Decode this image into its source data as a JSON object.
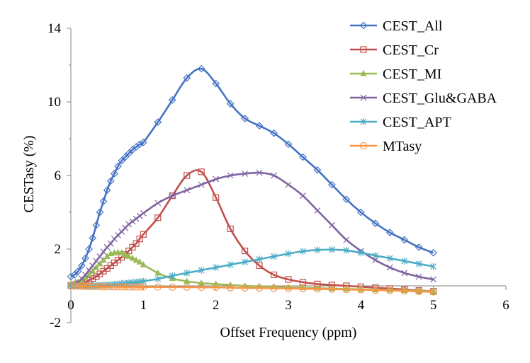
{
  "chart_data": {
    "type": "line",
    "title": "",
    "xlabel": "Offset Frequency (ppm)",
    "ylabel": "CESTasy (%)",
    "xlim": [
      0,
      6
    ],
    "ylim": [
      -2,
      14
    ],
    "xticks": [
      0,
      1,
      2,
      3,
      4,
      5,
      6
    ],
    "yticks": [
      -2,
      2,
      6,
      10,
      14
    ],
    "xtick_labels": [
      "0",
      "1",
      "2",
      "3",
      "4",
      "5",
      "6"
    ],
    "ytick_labels": [
      "-2",
      "2",
      "6",
      "10",
      "14"
    ],
    "grid": false,
    "legend_position": "top-right",
    "series": [
      {
        "name": "CEST_All",
        "color": "#4472C4",
        "marker": "diamond",
        "x": [
          0,
          0.05,
          0.1,
          0.15,
          0.2,
          0.25,
          0.3,
          0.35,
          0.4,
          0.45,
          0.5,
          0.55,
          0.6,
          0.65,
          0.7,
          0.75,
          0.8,
          0.85,
          0.9,
          0.95,
          1.0,
          1.2,
          1.4,
          1.6,
          1.8,
          2.0,
          2.2,
          2.4,
          2.6,
          2.8,
          3.0,
          3.2,
          3.4,
          3.6,
          3.8,
          4.0,
          4.2,
          4.4,
          4.6,
          4.8,
          5.0
        ],
        "y": [
          0.5,
          0.6,
          0.8,
          1.1,
          1.5,
          2.0,
          2.6,
          3.3,
          4.0,
          4.6,
          5.2,
          5.7,
          6.1,
          6.5,
          6.8,
          7.0,
          7.2,
          7.4,
          7.55,
          7.7,
          7.8,
          8.9,
          10.1,
          11.3,
          11.8,
          11.0,
          9.9,
          9.1,
          8.7,
          8.3,
          7.7,
          7.0,
          6.3,
          5.5,
          4.7,
          4.0,
          3.4,
          2.9,
          2.5,
          2.1,
          1.8
        ]
      },
      {
        "name": "CEST_Cr",
        "color": "#C0504D",
        "marker": "square",
        "x": [
          0,
          0.05,
          0.1,
          0.15,
          0.2,
          0.25,
          0.3,
          0.35,
          0.4,
          0.45,
          0.5,
          0.55,
          0.6,
          0.65,
          0.7,
          0.75,
          0.8,
          0.85,
          0.9,
          0.95,
          1.0,
          1.2,
          1.4,
          1.6,
          1.8,
          2.0,
          2.2,
          2.4,
          2.6,
          2.8,
          3.0,
          3.2,
          3.4,
          3.6,
          3.8,
          4.0,
          4.2,
          4.4,
          4.6,
          4.8,
          5.0
        ],
        "y": [
          0.02,
          0.05,
          0.1,
          0.15,
          0.2,
          0.3,
          0.4,
          0.5,
          0.65,
          0.8,
          0.95,
          1.1,
          1.25,
          1.4,
          1.55,
          1.7,
          1.9,
          2.1,
          2.3,
          2.55,
          2.8,
          3.7,
          4.9,
          6.0,
          6.2,
          4.8,
          3.1,
          1.9,
          1.1,
          0.6,
          0.35,
          0.2,
          0.1,
          0.05,
          0.0,
          -0.05,
          -0.1,
          -0.15,
          -0.2,
          -0.25,
          -0.3
        ]
      },
      {
        "name": "CEST_MI",
        "color": "#9BBB59",
        "marker": "triangle",
        "x": [
          0,
          0.05,
          0.1,
          0.15,
          0.2,
          0.25,
          0.3,
          0.35,
          0.4,
          0.45,
          0.5,
          0.55,
          0.6,
          0.65,
          0.7,
          0.75,
          0.8,
          0.85,
          0.9,
          0.95,
          1.0,
          1.2,
          1.4,
          1.6,
          1.8,
          2.0,
          2.2,
          2.4,
          2.6,
          2.8,
          3.0,
          3.2,
          3.4,
          3.6,
          3.8,
          4.0,
          4.2,
          4.4,
          4.6,
          4.8,
          5.0
        ],
        "y": [
          0.1,
          0.15,
          0.2,
          0.3,
          0.45,
          0.6,
          0.8,
          1.0,
          1.2,
          1.4,
          1.6,
          1.75,
          1.8,
          1.82,
          1.8,
          1.7,
          1.6,
          1.5,
          1.4,
          1.3,
          1.15,
          0.7,
          0.4,
          0.25,
          0.15,
          0.1,
          0.05,
          0.0,
          -0.03,
          -0.05,
          -0.08,
          -0.1,
          -0.12,
          -0.15,
          -0.17,
          -0.19,
          -0.21,
          -0.23,
          -0.25,
          -0.27,
          -0.3
        ]
      },
      {
        "name": "CEST_Glu&GABA",
        "color": "#8064A2",
        "marker": "x",
        "x": [
          0,
          0.05,
          0.1,
          0.15,
          0.2,
          0.25,
          0.3,
          0.35,
          0.4,
          0.45,
          0.5,
          0.55,
          0.6,
          0.65,
          0.7,
          0.75,
          0.8,
          0.85,
          0.9,
          0.95,
          1.0,
          1.2,
          1.4,
          1.6,
          1.8,
          2.0,
          2.2,
          2.4,
          2.6,
          2.8,
          3.0,
          3.2,
          3.4,
          3.6,
          3.8,
          4.0,
          4.2,
          4.4,
          4.6,
          4.8,
          5.0
        ],
        "y": [
          0.02,
          0.1,
          0.2,
          0.4,
          0.6,
          0.85,
          1.1,
          1.35,
          1.6,
          1.85,
          2.1,
          2.3,
          2.55,
          2.75,
          2.95,
          3.15,
          3.35,
          3.5,
          3.65,
          3.8,
          3.95,
          4.5,
          4.9,
          5.2,
          5.5,
          5.8,
          6.0,
          6.1,
          6.15,
          6.0,
          5.5,
          4.9,
          4.1,
          3.3,
          2.5,
          1.9,
          1.4,
          1.0,
          0.7,
          0.5,
          0.35
        ]
      },
      {
        "name": "CEST_APT",
        "color": "#4BACC6",
        "marker": "star",
        "x": [
          0,
          0.05,
          0.1,
          0.15,
          0.2,
          0.25,
          0.3,
          0.35,
          0.4,
          0.45,
          0.5,
          0.55,
          0.6,
          0.65,
          0.7,
          0.75,
          0.8,
          0.85,
          0.9,
          0.95,
          1.0,
          1.2,
          1.4,
          1.6,
          1.8,
          2.0,
          2.2,
          2.4,
          2.6,
          2.8,
          3.0,
          3.2,
          3.4,
          3.6,
          3.8,
          4.0,
          4.2,
          4.4,
          4.6,
          4.8,
          5.0
        ],
        "y": [
          0.0,
          0.0,
          0.0,
          0.0,
          0.0,
          0.01,
          0.01,
          0.02,
          0.03,
          0.04,
          0.05,
          0.06,
          0.08,
          0.1,
          0.12,
          0.14,
          0.16,
          0.18,
          0.2,
          0.22,
          0.25,
          0.38,
          0.55,
          0.7,
          0.85,
          1.0,
          1.15,
          1.3,
          1.45,
          1.6,
          1.75,
          1.88,
          1.95,
          1.97,
          1.93,
          1.8,
          1.65,
          1.5,
          1.35,
          1.2,
          1.05
        ]
      },
      {
        "name": "MTasy",
        "color": "#F79646",
        "marker": "circle",
        "x": [
          0,
          0.05,
          0.1,
          0.15,
          0.2,
          0.25,
          0.3,
          0.35,
          0.4,
          0.45,
          0.5,
          0.55,
          0.6,
          0.65,
          0.7,
          0.75,
          0.8,
          0.85,
          0.9,
          0.95,
          1.0,
          1.2,
          1.4,
          1.6,
          1.8,
          2.0,
          2.2,
          2.4,
          2.6,
          2.8,
          3.0,
          3.2,
          3.4,
          3.6,
          3.8,
          4.0,
          4.2,
          4.4,
          4.6,
          4.8,
          5.0
        ],
        "y": [
          0.0,
          -0.01,
          -0.02,
          -0.02,
          -0.03,
          -0.03,
          -0.04,
          -0.04,
          -0.04,
          -0.05,
          -0.05,
          -0.05,
          -0.05,
          -0.06,
          -0.06,
          -0.06,
          -0.06,
          -0.06,
          -0.06,
          -0.06,
          -0.06,
          -0.06,
          -0.07,
          -0.07,
          -0.08,
          -0.08,
          -0.1,
          -0.11,
          -0.12,
          -0.13,
          -0.14,
          -0.15,
          -0.17,
          -0.18,
          -0.2,
          -0.21,
          -0.23,
          -0.25,
          -0.27,
          -0.3,
          -0.33
        ]
      }
    ]
  }
}
